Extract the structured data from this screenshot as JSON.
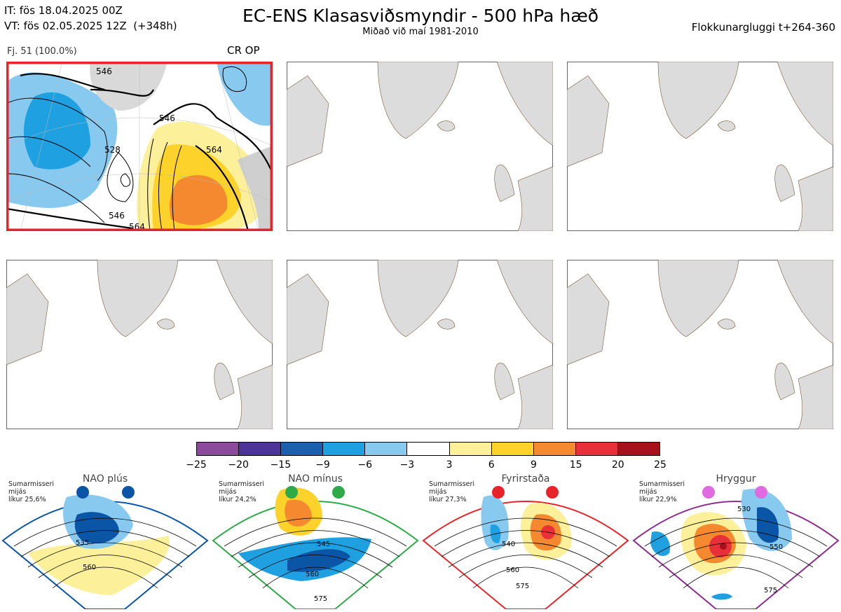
{
  "header": {
    "it_line": "IT: fös 18.04.2025 00Z",
    "vt_line": "VT: fös 02.05.2025 12Z  (+348h)",
    "title": "EC-ENS Klasasviðsmyndir - 500 hPa hæð",
    "subtitle": "Miðað við maí 1981-2010",
    "window": "Flokkunargluggi t+264-360"
  },
  "cluster_panel": {
    "members_label": "Fj. 51 (100.0%)",
    "type_label": "CR OP",
    "border_color": "#e8242a",
    "contour_labels": [
      "546",
      "546",
      "528",
      "564",
      "546",
      "564"
    ]
  },
  "colorbar": {
    "colors": [
      "#8b4a9c",
      "#4d3499",
      "#1c5fad",
      "#1fa0e0",
      "#88c9ef",
      "#ffffff",
      "#fdf09a",
      "#fdd22a",
      "#f5892f",
      "#e8303a",
      "#a6111c"
    ],
    "ticks": [
      "−25",
      "−20",
      "−15",
      "−9",
      "−6",
      "−3",
      "3",
      "6",
      "9",
      "15",
      "20",
      "25"
    ]
  },
  "regimes": [
    {
      "name": "NAO plús",
      "season": "Sumarmisseri",
      "kind": "mijás",
      "prob": "líkur 25,6%",
      "color": "#0a55a6",
      "contour_labels": [
        "535",
        "560"
      ]
    },
    {
      "name": "NAO mínus",
      "season": "Sumarmisseri",
      "kind": "mijás",
      "prob": "líkur 24,2%",
      "color": "#2eaa48",
      "contour_labels": [
        "545",
        "560",
        "575"
      ]
    },
    {
      "name": "Fyrirstaða",
      "season": "Sumarmisseri",
      "kind": "mijás",
      "prob": "líkur 27,3%",
      "color": "#e8242a",
      "contour_labels": [
        "540",
        "560",
        "575"
      ]
    },
    {
      "name": "Hryggur",
      "season": "Sumarmisseri",
      "kind": "mijás",
      "prob": "líkur 22,9%",
      "color": "#8e2d8e",
      "contour_labels": [
        "530",
        "550",
        "575"
      ]
    }
  ]
}
